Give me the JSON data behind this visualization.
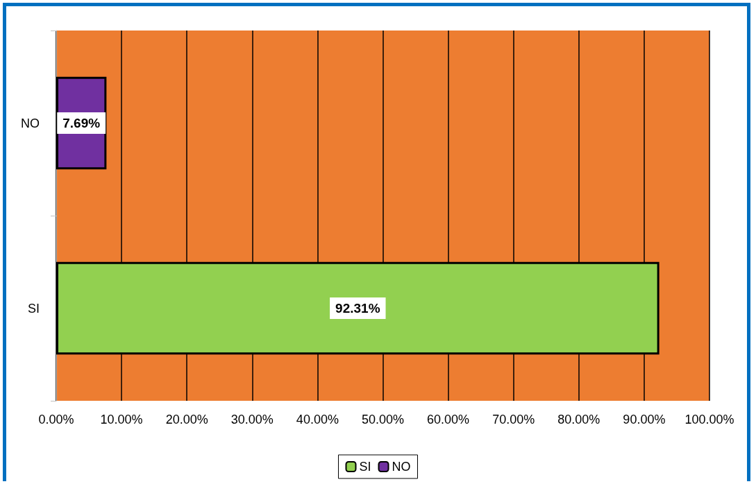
{
  "chart_data": {
    "type": "bar",
    "orientation": "horizontal",
    "categories": [
      "NO",
      "SI"
    ],
    "series": [
      {
        "name": "SI",
        "color": "#92d050",
        "values": [
          null,
          92.31
        ],
        "value_labels": [
          null,
          "92.31%"
        ]
      },
      {
        "name": "NO",
        "color": "#7030a0",
        "values": [
          7.69,
          null
        ],
        "value_labels": [
          "7.69%",
          null
        ]
      }
    ],
    "xlim": [
      0,
      100
    ],
    "xticks": [
      {
        "value": 0,
        "label": "0.00%"
      },
      {
        "value": 10,
        "label": "10.00%"
      },
      {
        "value": 20,
        "label": "20.00%"
      },
      {
        "value": 30,
        "label": "30.00%"
      },
      {
        "value": 40,
        "label": "40.00%"
      },
      {
        "value": 50,
        "label": "50.00%"
      },
      {
        "value": 60,
        "label": "60.00%"
      },
      {
        "value": 70,
        "label": "70.00%"
      },
      {
        "value": 80,
        "label": "80.00%"
      },
      {
        "value": 90,
        "label": "90.00%"
      },
      {
        "value": 100,
        "label": "100.00%"
      }
    ],
    "grid": "x",
    "legend": "bottom"
  }
}
